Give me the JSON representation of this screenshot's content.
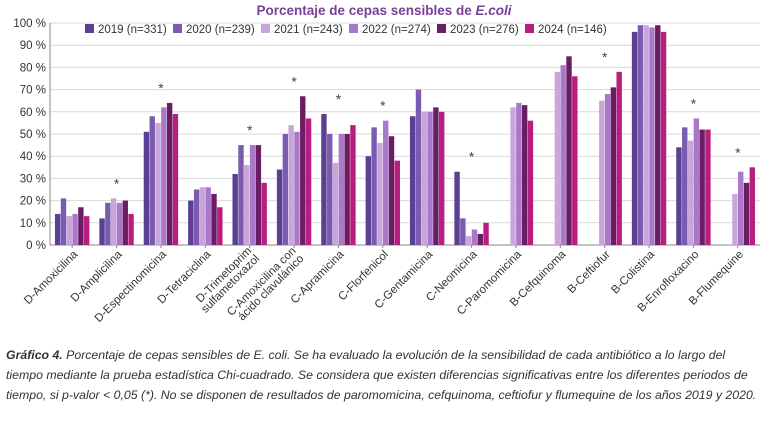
{
  "chart_data": {
    "type": "bar",
    "title_prefix": "Porcentaje  de cepas sensibles de ",
    "title_organism": "E.coli",
    "ylim": [
      0,
      100
    ],
    "y_ticks": [
      0,
      10,
      20,
      30,
      40,
      50,
      60,
      70,
      80,
      90,
      100
    ],
    "y_tick_suffix": " %",
    "grid": true,
    "legend_position": "top",
    "categories": [
      [
        "D-Amoxicilina"
      ],
      [
        "D-Amplicilina"
      ],
      [
        "D-Espectinomicina"
      ],
      [
        "D-Tetraciclina"
      ],
      [
        "D-Trimetoprim",
        "sulfametoxazol"
      ],
      [
        "C-Amoxicilina con",
        "ácido clavulánico"
      ],
      [
        "C-Apramicina"
      ],
      [
        "C-Florfenicol"
      ],
      [
        "C-Gentamicina"
      ],
      [
        "C-Neomicina"
      ],
      [
        "C-Paromomicina"
      ],
      [
        "B-Cefquinoma"
      ],
      [
        "B-Ceftiofur"
      ],
      [
        "B-Colistina"
      ],
      [
        "B-Enrofloxacino"
      ],
      [
        "B-Flumequine"
      ]
    ],
    "significance_marker": "*",
    "significant": [
      false,
      true,
      true,
      false,
      true,
      true,
      true,
      true,
      false,
      true,
      false,
      false,
      true,
      false,
      true,
      true
    ],
    "series": [
      {
        "name": "2019 (n=331)",
        "color": "#5b3f92",
        "values": [
          14,
          12,
          51,
          20,
          32,
          34,
          59,
          40,
          58,
          33,
          null,
          null,
          null,
          96,
          44,
          null
        ]
      },
      {
        "name": "2020 (n=239)",
        "color": "#7a5bb0",
        "values": [
          21,
          19,
          58,
          25,
          45,
          50,
          50,
          53,
          70,
          12,
          null,
          null,
          null,
          99,
          53,
          null
        ]
      },
      {
        "name": "2021 (n=243)",
        "color": "#c9a6d9",
        "values": [
          13,
          21,
          55,
          26,
          36,
          54,
          37,
          46,
          60,
          4,
          62,
          78,
          65,
          99,
          47,
          23
        ]
      },
      {
        "name": "2022 (n=274)",
        "color": "#a978c9",
        "values": [
          14,
          19,
          62,
          26,
          45,
          51,
          50,
          56,
          60,
          7,
          64,
          81,
          68,
          98,
          57,
          33
        ]
      },
      {
        "name": "2023 (n=276)",
        "color": "#6a1d63",
        "values": [
          17,
          20,
          64,
          23,
          45,
          67,
          50,
          49,
          62,
          5,
          63,
          85,
          71,
          99,
          52,
          28
        ]
      },
      {
        "name": "2024 (n=146)",
        "color": "#b81e7f",
        "values": [
          13,
          14,
          59,
          17,
          28,
          57,
          54,
          38,
          60,
          10,
          56,
          76,
          78,
          96,
          52,
          35
        ]
      }
    ]
  },
  "caption": {
    "label": "Gráfico 4.",
    "text": " Porcentaje de cepas sensibles de E. coli. Se ha evaluado la evolución de la sensibilidad de cada antibiótico a lo largo del tiempo mediante la prueba estadística Chi-cuadrado. Se considera que existen diferencias significativas entre los diferentes periodos de tiempo, si p-valor < 0,05 (*). No se disponen de resultados de paromomicina, cefquinoma, ceftiofur y flumequine de los años 2019 y 2020."
  }
}
